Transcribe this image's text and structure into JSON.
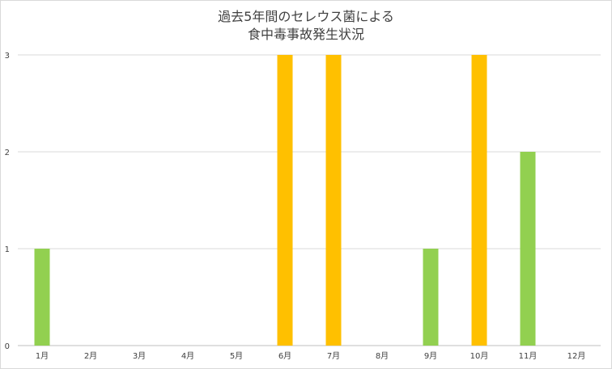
{
  "chart_data": {
    "type": "bar",
    "title_lines": [
      "過去5年間のセレウス菌による",
      "食中毒事故発生状況"
    ],
    "categories": [
      "1月",
      "2月",
      "3月",
      "4月",
      "5月",
      "6月",
      "7月",
      "8月",
      "9月",
      "10月",
      "11月",
      "12月"
    ],
    "values": [
      1,
      0,
      0,
      0,
      0,
      3,
      3,
      0,
      1,
      3,
      2,
      0
    ],
    "bar_colors": [
      "#92d050",
      "#92d050",
      "#92d050",
      "#92d050",
      "#92d050",
      "#ffc000",
      "#ffc000",
      "#92d050",
      "#92d050",
      "#ffc000",
      "#92d050",
      "#92d050"
    ],
    "y_ticks": [
      "0",
      "1",
      "2",
      "3"
    ],
    "ylim": [
      0,
      3
    ],
    "grid": true,
    "legend": "none"
  }
}
